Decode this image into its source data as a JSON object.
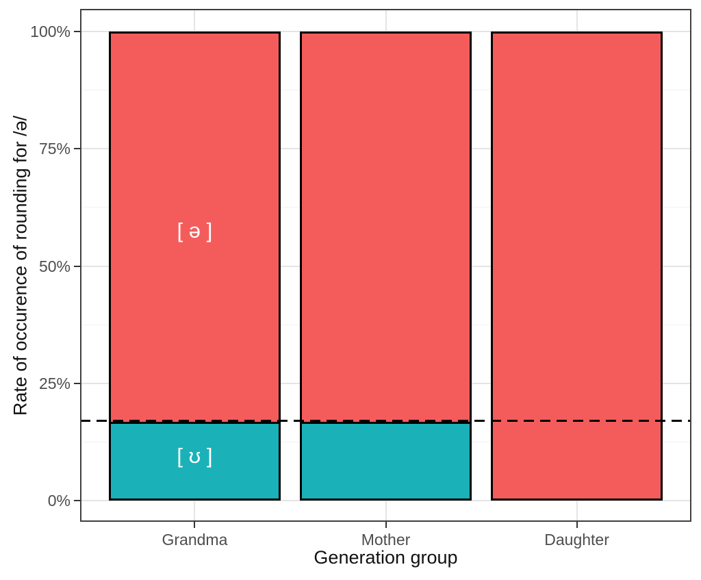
{
  "figure": {
    "background": "#FFFFFF"
  },
  "chart_data": {
    "type": "bar",
    "stacked": true,
    "orientation": "vertical",
    "title": "",
    "xlabel": "Generation group",
    "ylabel": "Rate of occurence of rounding for /ə/",
    "categories": [
      "Grandma",
      "Mother",
      "Daughter"
    ],
    "series": [
      {
        "name": "[ ʊ ]",
        "color": "#1AB2B8",
        "values": [
          16.5,
          16.5,
          0
        ]
      },
      {
        "name": "[ ə ]",
        "color": "#F45C5C",
        "values": [
          83.5,
          83.5,
          100
        ]
      }
    ],
    "stack_order": "bottom-to-top",
    "ylim": [
      0,
      100
    ],
    "ytick_values": [
      0,
      25,
      50,
      75,
      100
    ],
    "ytick_labels": [
      "0%",
      "25%",
      "50%",
      "75%",
      "100%"
    ],
    "yminor_values": [
      12.5,
      37.5,
      62.5,
      87.5
    ],
    "reference_line": {
      "value": 17,
      "line_style": "dashed",
      "color": "#000000"
    },
    "segment_labels": [
      {
        "text": "[ ə ]",
        "category_index": 0,
        "y_value": 57.5,
        "color": "#FFFFFF"
      },
      {
        "text": "[ ʊ ]",
        "category_index": 0,
        "y_value": 9.5,
        "color": "#FFFFFF"
      }
    ],
    "grid": true,
    "legend": false,
    "colors": {
      "bar_outline": "#000000",
      "panel_border": "#3F3F3F",
      "grid_major": "#E4E4E4",
      "grid_minor": "#F1F1F1",
      "tick_mark": "#333333",
      "tick_label": "#4D4D4D",
      "axis_title": "#111111"
    }
  }
}
